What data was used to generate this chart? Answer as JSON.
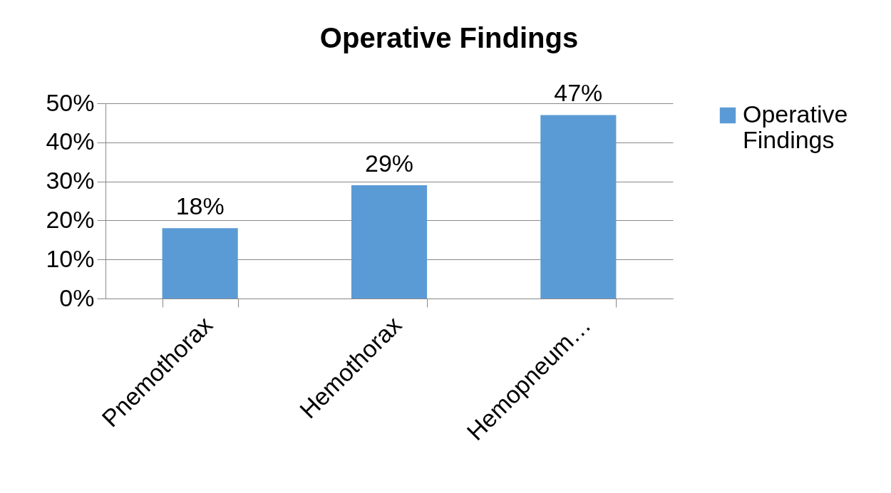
{
  "chart_data": {
    "type": "bar",
    "title": "Operative Findings",
    "categories": [
      "Pnemothorax",
      "Hemothorax",
      "Hemopneum…"
    ],
    "series": [
      {
        "name": "Operative Findings",
        "color": "#5b9bd5",
        "values": [
          18,
          29,
          47
        ]
      }
    ],
    "value_labels": [
      "18%",
      "29%",
      "47%"
    ],
    "ylim": [
      0,
      50
    ],
    "yticks": [
      {
        "value": 0,
        "label": "0%"
      },
      {
        "value": 10,
        "label": "10%"
      },
      {
        "value": 20,
        "label": "20%"
      },
      {
        "value": 30,
        "label": "30%"
      },
      {
        "value": 40,
        "label": "40%"
      },
      {
        "value": 50,
        "label": "50%"
      }
    ],
    "grid": "y",
    "legend": "right"
  }
}
